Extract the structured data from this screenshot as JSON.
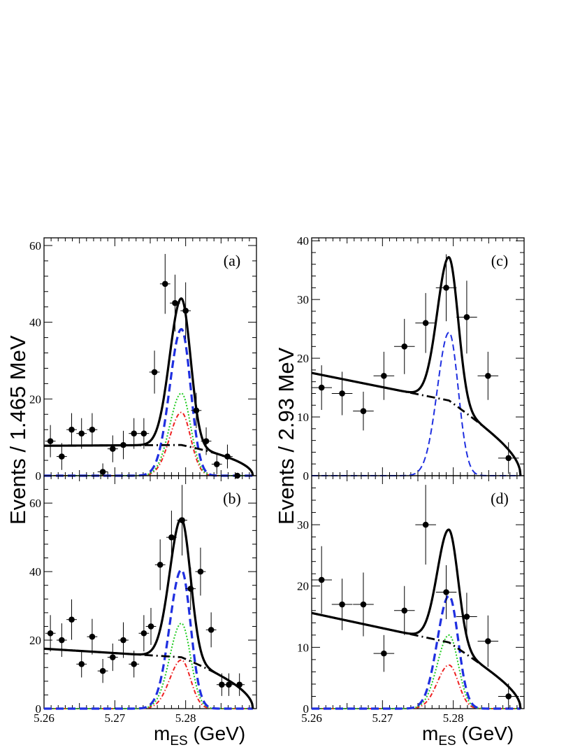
{
  "chart_data": [
    {
      "id": "a",
      "type": "scatter",
      "label": "(a)",
      "xlim": [
        5.26,
        5.29
      ],
      "ylim": [
        0,
        62
      ],
      "yticks": [
        0,
        20,
        40,
        60
      ],
      "y_tick_labels": [
        "0",
        "20",
        "40",
        "60"
      ],
      "x_tick_labels": [],
      "ylabel": "",
      "xlabel": "",
      "points": [
        {
          "x": 5.2609,
          "y": 9,
          "ey": 4.2
        },
        {
          "x": 5.2625,
          "y": 5,
          "ey": 3.5
        },
        {
          "x": 5.2639,
          "y": 12,
          "ey": 4.3
        },
        {
          "x": 5.2653,
          "y": 11,
          "ey": 4.0
        },
        {
          "x": 5.2668,
          "y": 12,
          "ey": 4.3
        },
        {
          "x": 5.2683,
          "y": 1,
          "ey": 2.2
        },
        {
          "x": 5.2697,
          "y": 7,
          "ey": 3.5
        },
        {
          "x": 5.2712,
          "y": 8,
          "ey": 3.7
        },
        {
          "x": 5.2727,
          "y": 11,
          "ey": 4.0
        },
        {
          "x": 5.2741,
          "y": 11,
          "ey": 4.0
        },
        {
          "x": 5.2756,
          "y": 27,
          "ey": 5.6
        },
        {
          "x": 5.2771,
          "y": 50,
          "ey": 7.8
        },
        {
          "x": 5.2785,
          "y": 45,
          "ey": 7.4
        },
        {
          "x": 5.28,
          "y": 43,
          "ey": 7.4
        },
        {
          "x": 5.2815,
          "y": 17,
          "ey": 4.6
        },
        {
          "x": 5.2829,
          "y": 9,
          "ey": 3.6
        },
        {
          "x": 5.2844,
          "y": 3,
          "ey": 2.6
        },
        {
          "x": 5.2859,
          "y": 5,
          "ey": 3.1
        },
        {
          "x": 5.2873,
          "y": 0,
          "ey": 0
        }
      ],
      "curves": {
        "total": true,
        "bkg": true,
        "sig": true,
        "green": true,
        "red": true
      },
      "params": {
        "a0": 7.8,
        "a_peak": 8.0,
        "sig_amp": 38.2,
        "green_amp": 21.5,
        "red_amp": 16.5
      }
    },
    {
      "id": "b",
      "type": "scatter",
      "label": "(b)",
      "xlim": [
        5.26,
        5.29
      ],
      "ylim": [
        0,
        68
      ],
      "yticks": [
        0,
        20,
        40,
        60
      ],
      "y_tick_labels": [
        "0",
        "20",
        "40",
        "60"
      ],
      "x_tick_labels": [
        "5.26",
        "5.27",
        "5.28"
      ],
      "ylabel": "",
      "xlabel": "",
      "points": [
        {
          "x": 5.2609,
          "y": 22,
          "ey": 5.3
        },
        {
          "x": 5.2625,
          "y": 20,
          "ey": 4.9
        },
        {
          "x": 5.2639,
          "y": 26,
          "ey": 5.9
        },
        {
          "x": 5.2653,
          "y": 13,
          "ey": 3.9
        },
        {
          "x": 5.2668,
          "y": 21,
          "ey": 5.2
        },
        {
          "x": 5.2683,
          "y": 11,
          "ey": 3.5
        },
        {
          "x": 5.2697,
          "y": 15,
          "ey": 4.0
        },
        {
          "x": 5.2712,
          "y": 20,
          "ey": 5.2
        },
        {
          "x": 5.2727,
          "y": 13,
          "ey": 3.9
        },
        {
          "x": 5.2741,
          "y": 22,
          "ey": 5.3
        },
        {
          "x": 5.2751,
          "y": 24,
          "ey": 5.4
        },
        {
          "x": 5.2764,
          "y": 42,
          "ey": 7.4
        },
        {
          "x": 5.278,
          "y": 50,
          "ey": 7.8
        },
        {
          "x": 5.2795,
          "y": 55,
          "ey": 10.3
        },
        {
          "x": 5.2807,
          "y": 35,
          "ey": 6.2
        },
        {
          "x": 5.2821,
          "y": 40,
          "ey": 7.0
        },
        {
          "x": 5.2836,
          "y": 23,
          "ey": 5.1
        },
        {
          "x": 5.2851,
          "y": 7,
          "ey": 3.3
        },
        {
          "x": 5.2861,
          "y": 7,
          "ey": 3.3
        },
        {
          "x": 5.2876,
          "y": 7,
          "ey": 3.3
        }
      ],
      "curves": {
        "total": true,
        "bkg": true,
        "sig": true,
        "green": true,
        "red": true
      },
      "params": {
        "a0": 17.5,
        "a_peak": 15.0,
        "sig_amp": 40.5,
        "green_amp": 24.9,
        "red_amp": 14.2
      }
    },
    {
      "id": "c",
      "type": "scatter",
      "label": "(c)",
      "xlim": [
        5.26,
        5.29
      ],
      "ylim": [
        0,
        40.5
      ],
      "yticks": [
        0,
        10,
        20,
        30,
        40
      ],
      "y_tick_labels": [
        "0",
        "10",
        "20",
        "30",
        "40"
      ],
      "x_tick_labels": [],
      "ylabel": "",
      "xlabel": "",
      "points": [
        {
          "x": 5.2614,
          "y": 15,
          "ey": 3.8
        },
        {
          "x": 5.2643,
          "y": 14,
          "ey": 3.7
        },
        {
          "x": 5.2673,
          "y": 11,
          "ey": 3.3
        },
        {
          "x": 5.2702,
          "y": 17,
          "ey": 4.1
        },
        {
          "x": 5.2731,
          "y": 22,
          "ey": 4.7
        },
        {
          "x": 5.2761,
          "y": 26,
          "ey": 5.1
        },
        {
          "x": 5.279,
          "y": 32,
          "ey": 5.7
        },
        {
          "x": 5.2819,
          "y": 27,
          "ey": 6.2
        },
        {
          "x": 5.2849,
          "y": 17,
          "ey": 4.1
        },
        {
          "x": 5.2878,
          "y": 3,
          "ey": 2.7
        }
      ],
      "curves": {
        "total": true,
        "bkg": true,
        "sig": true,
        "green": false,
        "red": false
      },
      "params": {
        "a0": 17.5,
        "a_peak": 12.8,
        "sig_amp": 24.4,
        "green_amp": 0,
        "red_amp": 0
      }
    },
    {
      "id": "d",
      "type": "scatter",
      "label": "(d)",
      "xlim": [
        5.26,
        5.29
      ],
      "ylim": [
        0,
        38
      ],
      "yticks": [
        0,
        10,
        20,
        30
      ],
      "y_tick_labels": [
        "0",
        "10",
        "20",
        "30"
      ],
      "x_tick_labels": [
        "5.26",
        "5.27",
        "5.28"
      ],
      "ylabel": "",
      "xlabel": "",
      "points": [
        {
          "x": 5.2614,
          "y": 21,
          "ey": 5.5
        },
        {
          "x": 5.2643,
          "y": 17,
          "ey": 4.2
        },
        {
          "x": 5.2673,
          "y": 17,
          "ey": 5.2
        },
        {
          "x": 5.2702,
          "y": 9,
          "ey": 3.0
        },
        {
          "x": 5.2731,
          "y": 16,
          "ey": 4.0
        },
        {
          "x": 5.2761,
          "y": 30,
          "ey": 6.5
        },
        {
          "x": 5.279,
          "y": 19,
          "ey": 4.4
        },
        {
          "x": 5.2819,
          "y": 15,
          "ey": 3.9
        },
        {
          "x": 5.2849,
          "y": 11,
          "ey": 4.2
        },
        {
          "x": 5.2878,
          "y": 2,
          "ey": 2.1
        }
      ],
      "curves": {
        "total": true,
        "bkg": true,
        "sig": true,
        "green": true,
        "red": true
      },
      "params": {
        "a0": 15.6,
        "a_peak": 10.8,
        "sig_amp": 18.4,
        "green_amp": 12.0,
        "red_amp": 7.1
      }
    }
  ],
  "ylabels": {
    "left": "Events / 1.465 MeV",
    "right": "Events / 2.93 MeV"
  },
  "xlabels": {
    "main": "m",
    "sub": "ES",
    "unit": " (GeV)"
  },
  "colors": {
    "data": "#000000",
    "total": "#000000",
    "background": "#000000",
    "signal": "#1f2fe0",
    "green": "#22cc22",
    "red": "#ee2222"
  }
}
